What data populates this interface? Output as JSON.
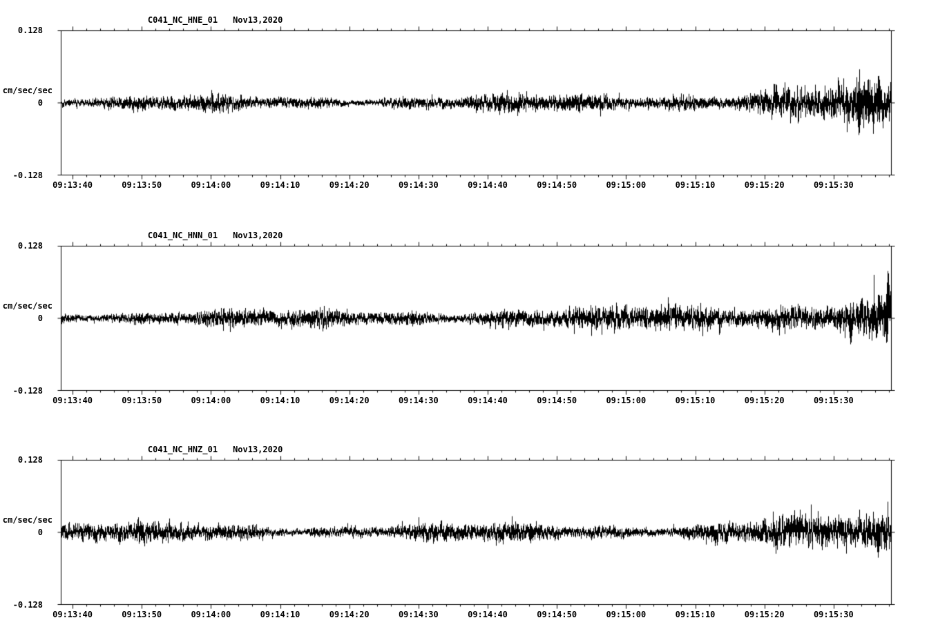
{
  "page": {
    "background": "#ffffff",
    "trace_color": "#000000"
  },
  "chart_data": [
    {
      "type": "line",
      "title": "C041_NC_HNE_01",
      "date": "Nov13,2020",
      "ylabel": "cm/sec/sec",
      "y_top_label": "0.128",
      "y_zero_label": "0",
      "y_bottom_label": "-0.128",
      "ylim": [
        -0.128,
        0.128
      ],
      "x_tick_labels": [
        "09:13:40",
        "09:13:50",
        "09:14:00",
        "09:14:10",
        "09:14:20",
        "09:14:30",
        "09:14:40",
        "09:14:50",
        "09:15:00",
        "09:15:10",
        "09:15:20",
        "09:15:30"
      ],
      "x_major_interval_s": 10,
      "x_minor_interval_s": 2,
      "x_total_span_s": 120,
      "x_first_tick_offset_s": 1.7,
      "grid": false,
      "legend": false,
      "envelope": [
        0.013,
        0.013,
        0.013,
        0.013,
        0.013,
        0.013,
        0.014,
        0.014,
        0.015,
        0.018,
        0.023,
        0.027,
        0.032
      ],
      "spikes": [
        {
          "pos": 0.962,
          "amp": 0.062,
          "sign": -1
        },
        {
          "pos": 0.986,
          "amp": 0.05,
          "sign": 1
        }
      ],
      "seed": 41
    },
    {
      "type": "line",
      "title": "C041_NC_HNN_01",
      "date": "Nov13,2020",
      "ylabel": "cm/sec/sec",
      "y_top_label": "0.128",
      "y_zero_label": "0",
      "y_bottom_label": "-0.128",
      "ylim": [
        -0.128,
        0.128
      ],
      "x_tick_labels": [
        "09:13:40",
        "09:13:50",
        "09:14:00",
        "09:14:10",
        "09:14:20",
        "09:14:30",
        "09:14:40",
        "09:14:50",
        "09:15:00",
        "09:15:10",
        "09:15:20",
        "09:15:30"
      ],
      "x_major_interval_s": 10,
      "x_minor_interval_s": 2,
      "x_total_span_s": 120,
      "x_first_tick_offset_s": 1.7,
      "grid": false,
      "legend": false,
      "envelope": [
        0.014,
        0.014,
        0.015,
        0.014,
        0.014,
        0.014,
        0.014,
        0.015,
        0.016,
        0.019,
        0.023,
        0.028,
        0.036
      ],
      "spikes": [
        {
          "pos": 0.997,
          "amp": 0.092,
          "sign": 1
        },
        {
          "pos": 0.952,
          "amp": 0.05,
          "sign": -1
        }
      ],
      "seed": 42
    },
    {
      "type": "line",
      "title": "C041_NC_HNZ_01",
      "date": "Nov13,2020",
      "ylabel": "cm/sec/sec",
      "y_top_label": "0.128",
      "y_zero_label": "0",
      "y_bottom_label": "-0.128",
      "ylim": [
        -0.128,
        0.128
      ],
      "x_tick_labels": [
        "09:13:40",
        "09:13:50",
        "09:14:00",
        "09:14:10",
        "09:14:20",
        "09:14:30",
        "09:14:40",
        "09:14:50",
        "09:15:00",
        "09:15:10",
        "09:15:20",
        "09:15:30"
      ],
      "x_major_interval_s": 10,
      "x_minor_interval_s": 2,
      "x_total_span_s": 120,
      "x_first_tick_offset_s": 1.7,
      "grid": false,
      "legend": false,
      "envelope": [
        0.015,
        0.015,
        0.015,
        0.015,
        0.015,
        0.015,
        0.015,
        0.016,
        0.017,
        0.019,
        0.022,
        0.026,
        0.03
      ],
      "spikes": [
        {
          "pos": 0.985,
          "amp": 0.045,
          "sign": -1
        }
      ],
      "seed": 43
    }
  ]
}
